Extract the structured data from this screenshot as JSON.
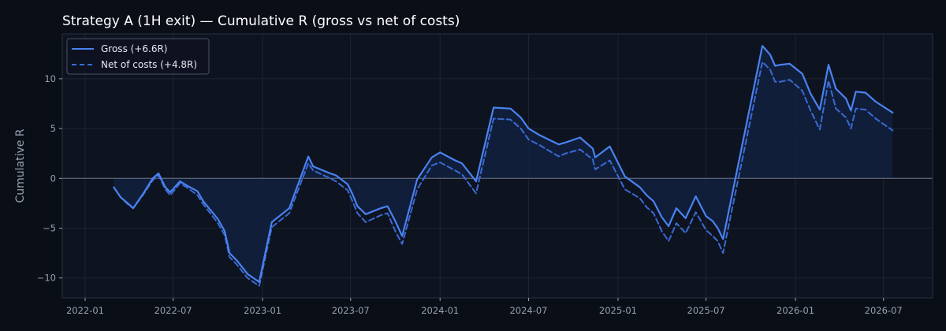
{
  "chart_data": {
    "type": "line",
    "title": "Strategy A (1H exit) — Cumulative R (gross vs net of costs)",
    "ylabel": "Cumulative R",
    "xlabel": "",
    "xlim": [
      "2021-11-15",
      "2026-10-10"
    ],
    "ylim": [
      -12,
      14.5
    ],
    "x_ticks": [
      "2022-01",
      "2022-07",
      "2023-01",
      "2023-07",
      "2024-01",
      "2024-07",
      "2025-01",
      "2025-07",
      "2026-01",
      "2026-07"
    ],
    "y_ticks": [
      -10,
      -5,
      0,
      5,
      10
    ],
    "grid": true,
    "legend_position": "top-left",
    "zero_line": true,
    "colors": {
      "background": "#0a0e17",
      "plot_background": "#0e1320",
      "grid": "#1e2533",
      "gross": "#4a82f0",
      "net": "#3a6ad4",
      "fill": "#10213f",
      "zero_line": "#6b7687"
    },
    "series": [
      {
        "name": "Gross (+6.6R)",
        "style": "solid",
        "points": [
          [
            "2022-03-01",
            -0.9
          ],
          [
            "2022-03-15",
            -1.9
          ],
          [
            "2022-04-01",
            -2.6
          ],
          [
            "2022-04-10",
            -3.0
          ],
          [
            "2022-05-01",
            -1.5
          ],
          [
            "2022-05-20",
            0.0
          ],
          [
            "2022-06-01",
            0.5
          ],
          [
            "2022-06-15",
            -0.9
          ],
          [
            "2022-06-25",
            -1.4
          ],
          [
            "2022-07-15",
            -0.3
          ],
          [
            "2022-08-01",
            -0.8
          ],
          [
            "2022-08-20",
            -1.3
          ],
          [
            "2022-09-01",
            -2.3
          ],
          [
            "2022-10-01",
            -4.1
          ],
          [
            "2022-10-15",
            -5.3
          ],
          [
            "2022-10-25",
            -7.5
          ],
          [
            "2022-11-10",
            -8.3
          ],
          [
            "2022-12-01",
            -9.6
          ],
          [
            "2022-12-25",
            -10.4
          ],
          [
            "2023-01-20",
            -4.4
          ],
          [
            "2023-02-25",
            -3.0
          ],
          [
            "2023-04-05",
            2.2
          ],
          [
            "2023-04-15",
            1.2
          ],
          [
            "2023-05-20",
            0.5
          ],
          [
            "2023-06-01",
            0.3
          ],
          [
            "2023-06-25",
            -0.6
          ],
          [
            "2023-07-05",
            -1.6
          ],
          [
            "2023-07-15",
            -2.8
          ],
          [
            "2023-08-01",
            -3.6
          ],
          [
            "2023-09-01",
            -3.0
          ],
          [
            "2023-09-15",
            -2.8
          ],
          [
            "2023-10-01",
            -4.3
          ],
          [
            "2023-10-15",
            -5.8
          ],
          [
            "2023-11-15",
            -0.1
          ],
          [
            "2023-12-15",
            2.1
          ],
          [
            "2024-01-01",
            2.6
          ],
          [
            "2024-02-01",
            1.8
          ],
          [
            "2024-02-15",
            1.5
          ],
          [
            "2024-03-15",
            -0.3
          ],
          [
            "2024-04-20",
            7.1
          ],
          [
            "2024-05-25",
            7.0
          ],
          [
            "2024-06-15",
            6.1
          ],
          [
            "2024-07-01",
            5.0
          ],
          [
            "2024-07-25",
            4.3
          ],
          [
            "2024-09-01",
            3.4
          ],
          [
            "2024-09-15",
            3.6
          ],
          [
            "2024-10-15",
            4.1
          ],
          [
            "2024-11-10",
            3.0
          ],
          [
            "2024-11-15",
            2.1
          ],
          [
            "2024-12-15",
            3.2
          ],
          [
            "2025-01-15",
            0.2
          ],
          [
            "2025-02-15",
            -0.9
          ],
          [
            "2025-03-01",
            -1.7
          ],
          [
            "2025-03-15",
            -2.3
          ],
          [
            "2025-04-01",
            -3.9
          ],
          [
            "2025-04-15",
            -4.8
          ],
          [
            "2025-05-01",
            -3.0
          ],
          [
            "2025-05-20",
            -4.0
          ],
          [
            "2025-06-10",
            -1.8
          ],
          [
            "2025-07-01",
            -3.8
          ],
          [
            "2025-07-15",
            -4.3
          ],
          [
            "2025-07-25",
            -5.0
          ],
          [
            "2025-08-05",
            -6.1
          ],
          [
            "2025-10-25",
            13.3
          ],
          [
            "2025-11-10",
            12.4
          ],
          [
            "2025-11-20",
            11.3
          ],
          [
            "2025-12-01",
            11.4
          ],
          [
            "2025-12-20",
            11.5
          ],
          [
            "2026-01-15",
            10.5
          ],
          [
            "2026-02-01",
            8.5
          ],
          [
            "2026-02-20",
            6.9
          ],
          [
            "2026-03-10",
            11.4
          ],
          [
            "2026-03-25",
            9.0
          ],
          [
            "2026-04-15",
            8.0
          ],
          [
            "2026-04-25",
            6.8
          ],
          [
            "2026-05-05",
            8.7
          ],
          [
            "2026-05-25",
            8.6
          ],
          [
            "2026-06-15",
            7.7
          ],
          [
            "2026-07-20",
            6.6
          ]
        ]
      },
      {
        "name": "Net of costs (+4.8R)",
        "style": "dashed",
        "points": [
          [
            "2022-03-01",
            -0.9
          ],
          [
            "2022-03-15",
            -1.9
          ],
          [
            "2022-04-01",
            -2.7
          ],
          [
            "2022-04-10",
            -3.0
          ],
          [
            "2022-05-01",
            -1.6
          ],
          [
            "2022-05-20",
            -0.2
          ],
          [
            "2022-06-01",
            0.3
          ],
          [
            "2022-06-15",
            -1.1
          ],
          [
            "2022-06-25",
            -1.7
          ],
          [
            "2022-07-15",
            -0.5
          ],
          [
            "2022-08-01",
            -1.0
          ],
          [
            "2022-08-20",
            -1.7
          ],
          [
            "2022-09-01",
            -2.6
          ],
          [
            "2022-10-01",
            -4.5
          ],
          [
            "2022-10-15",
            -5.7
          ],
          [
            "2022-10-25",
            -7.9
          ],
          [
            "2022-11-10",
            -8.7
          ],
          [
            "2022-12-01",
            -10.0
          ],
          [
            "2022-12-25",
            -10.8
          ],
          [
            "2023-01-20",
            -4.9
          ],
          [
            "2023-02-25",
            -3.5
          ],
          [
            "2023-04-05",
            1.5
          ],
          [
            "2023-04-15",
            0.8
          ],
          [
            "2023-05-20",
            0.0
          ],
          [
            "2023-06-01",
            -0.3
          ],
          [
            "2023-06-25",
            -1.2
          ],
          [
            "2023-07-05",
            -2.3
          ],
          [
            "2023-07-15",
            -3.5
          ],
          [
            "2023-08-01",
            -4.4
          ],
          [
            "2023-09-01",
            -3.7
          ],
          [
            "2023-09-15",
            -3.5
          ],
          [
            "2023-10-01",
            -5.3
          ],
          [
            "2023-10-15",
            -6.6
          ],
          [
            "2023-11-15",
            -1.1
          ],
          [
            "2023-12-15",
            1.3
          ],
          [
            "2024-01-01",
            1.6
          ],
          [
            "2024-02-01",
            0.8
          ],
          [
            "2024-02-15",
            0.4
          ],
          [
            "2024-03-15",
            -1.5
          ],
          [
            "2024-04-20",
            6.0
          ],
          [
            "2024-05-25",
            5.9
          ],
          [
            "2024-06-15",
            5.0
          ],
          [
            "2024-07-01",
            3.9
          ],
          [
            "2024-07-25",
            3.3
          ],
          [
            "2024-09-01",
            2.2
          ],
          [
            "2024-09-15",
            2.5
          ],
          [
            "2024-10-15",
            2.9
          ],
          [
            "2024-11-10",
            1.9
          ],
          [
            "2024-11-15",
            0.9
          ],
          [
            "2024-12-15",
            1.8
          ],
          [
            "2025-01-15",
            -1.1
          ],
          [
            "2025-02-15",
            -2.0
          ],
          [
            "2025-03-01",
            -2.9
          ],
          [
            "2025-03-15",
            -3.5
          ],
          [
            "2025-04-01",
            -5.3
          ],
          [
            "2025-04-15",
            -6.3
          ],
          [
            "2025-05-01",
            -4.5
          ],
          [
            "2025-05-20",
            -5.5
          ],
          [
            "2025-06-10",
            -3.4
          ],
          [
            "2025-07-01",
            -5.2
          ],
          [
            "2025-07-15",
            -5.8
          ],
          [
            "2025-07-25",
            -6.3
          ],
          [
            "2025-08-05",
            -7.5
          ],
          [
            "2025-10-25",
            11.7
          ],
          [
            "2025-11-10",
            10.9
          ],
          [
            "2025-11-20",
            9.7
          ],
          [
            "2025-12-01",
            9.7
          ],
          [
            "2025-12-20",
            9.9
          ],
          [
            "2026-01-15",
            8.8
          ],
          [
            "2026-02-01",
            6.8
          ],
          [
            "2026-02-20",
            4.9
          ],
          [
            "2026-03-10",
            9.8
          ],
          [
            "2026-03-25",
            7.0
          ],
          [
            "2026-04-15",
            6.1
          ],
          [
            "2026-04-25",
            5.0
          ],
          [
            "2026-05-05",
            7.0
          ],
          [
            "2026-05-25",
            6.9
          ],
          [
            "2026-06-15",
            6.0
          ],
          [
            "2026-07-20",
            4.8
          ]
        ]
      }
    ]
  }
}
